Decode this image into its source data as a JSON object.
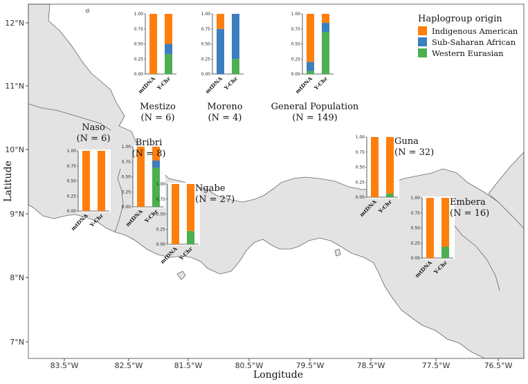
{
  "figure": {
    "x_axis_label": "Longitude",
    "y_axis_label": "Latitude",
    "x_ticks": [
      "83.5°W",
      "82.5°W",
      "81.5°W",
      "80.5°W",
      "79.5°W",
      "78.5°W",
      "77.5°W",
      "76.5°W"
    ],
    "y_ticks": [
      "12°N",
      "11°N",
      "10°N",
      "9°N",
      "8°N",
      "7°N"
    ],
    "land_color": "#e3e3e3",
    "border_color": "#555555"
  },
  "legend": {
    "title": "Haplogroup origin",
    "items": [
      {
        "label": "Indigenous American",
        "color": "#ff7f0e"
      },
      {
        "label": "Sub-Saharan African",
        "color": "#3b7fc0"
      },
      {
        "label": "Western Eurasian",
        "color": "#4caf50"
      }
    ]
  },
  "chart_data": {
    "type": "bar",
    "stacked": true,
    "categories": [
      "mtDNA",
      "Y-Chr"
    ],
    "y_ticks": [
      "0.00",
      "0.25",
      "0.50",
      "0.75",
      "1.00"
    ],
    "ylim": [
      0,
      1
    ],
    "series_order": [
      "Western Eurasian",
      "Sub-Saharan African",
      "Indigenous American"
    ],
    "populations": [
      {
        "name": "Mestizo",
        "n_text": "N = 6",
        "values": {
          "mtDNA": {
            "Western Eurasian": 0,
            "Sub-Saharan African": 0,
            "Indigenous American": 1.0
          },
          "Y-Chr": {
            "Western Eurasian": 0.33,
            "Sub-Saharan African": 0.17,
            "Indigenous American": 0.5
          }
        }
      },
      {
        "name": "Moreno",
        "n_text": "N = 4",
        "values": {
          "mtDNA": {
            "Western Eurasian": 0,
            "Sub-Saharan African": 0.75,
            "Indigenous American": 0.25
          },
          "Y-Chr": {
            "Western Eurasian": 0.25,
            "Sub-Saharan African": 0.75,
            "Indigenous American": 0
          }
        }
      },
      {
        "name": "General Population",
        "n_text": "N = 149",
        "values": {
          "mtDNA": {
            "Western Eurasian": 0.05,
            "Sub-Saharan African": 0.15,
            "Indigenous American": 0.8
          },
          "Y-Chr": {
            "Western Eurasian": 0.7,
            "Sub-Saharan African": 0.15,
            "Indigenous American": 0.15
          }
        }
      },
      {
        "name": "Naso",
        "n_text": "N = 6",
        "values": {
          "mtDNA": {
            "Western Eurasian": 0,
            "Sub-Saharan African": 0,
            "Indigenous American": 1.0
          },
          "Y-Chr": {
            "Western Eurasian": 0,
            "Sub-Saharan African": 0,
            "Indigenous American": 1.0
          }
        }
      },
      {
        "name": "Bribri",
        "n_text": "N = 8",
        "values": {
          "mtDNA": {
            "Western Eurasian": 0,
            "Sub-Saharan African": 0,
            "Indigenous American": 1.0
          },
          "Y-Chr": {
            "Western Eurasian": 0.65,
            "Sub-Saharan African": 0.12,
            "Indigenous American": 0.23
          }
        }
      },
      {
        "name": "Ngabe",
        "n_text": "N = 27",
        "values": {
          "mtDNA": {
            "Western Eurasian": 0,
            "Sub-Saharan African": 0,
            "Indigenous American": 1.0
          },
          "Y-Chr": {
            "Western Eurasian": 0.22,
            "Sub-Saharan African": 0,
            "Indigenous American": 0.78
          }
        }
      },
      {
        "name": "Guna",
        "n_text": "N = 32",
        "values": {
          "mtDNA": {
            "Western Eurasian": 0,
            "Sub-Saharan African": 0,
            "Indigenous American": 1.0
          },
          "Y-Chr": {
            "Western Eurasian": 0.06,
            "Sub-Saharan African": 0,
            "Indigenous American": 0.94
          }
        }
      },
      {
        "name": "Embera",
        "n_text": "N = 16",
        "values": {
          "mtDNA": {
            "Western Eurasian": 0,
            "Sub-Saharan African": 0,
            "Indigenous American": 1.0
          },
          "Y-Chr": {
            "Western Eurasian": 0.19,
            "Sub-Saharan African": 0,
            "Indigenous American": 0.81
          }
        }
      }
    ]
  }
}
